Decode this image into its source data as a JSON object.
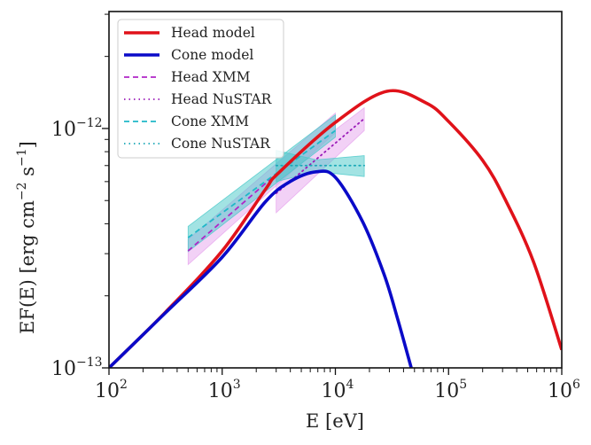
{
  "chart_data": {
    "type": "line",
    "title": "",
    "xlabel": "E [eV]",
    "ylabel": "EF(E) [erg cm^-2 s^-1]",
    "xscale": "log",
    "yscale": "log",
    "xlim": [
      100,
      1000000
    ],
    "ylim": [
      1e-13,
      3.08e-12
    ],
    "grid": false,
    "legend_position": "top-left",
    "x_ticks": [
      {
        "value": 100,
        "base": "10",
        "exp": "2"
      },
      {
        "value": 1000,
        "base": "10",
        "exp": "3"
      },
      {
        "value": 10000,
        "base": "10",
        "exp": "4"
      },
      {
        "value": 100000,
        "base": "10",
        "exp": "5"
      },
      {
        "value": 1000000,
        "base": "10",
        "exp": "6"
      }
    ],
    "y_ticks": [
      {
        "value": 1e-13,
        "base": "10",
        "exp": "−13"
      },
      {
        "value": 1e-12,
        "base": "10",
        "exp": "−12"
      }
    ],
    "ylabel_parts": {
      "main": "EF(E) [erg cm",
      "exp1": "−2",
      "mid": " s",
      "exp2": "−1",
      "end": "]"
    },
    "series": [
      {
        "name": "Head model",
        "color": "#e0121a",
        "style": "solid",
        "kind": "line",
        "x": [
          100,
          316,
          1000,
          2400,
          3160,
          10000,
          28500,
          63000,
          100000,
          200000,
          316000,
          562000,
          1000000
        ],
        "y": [
          1e-13,
          1.71e-13,
          3.08e-13,
          5.55e-13,
          6.53e-13,
          1.06e-12,
          1.43e-12,
          1.28e-12,
          1.07e-12,
          7.36e-13,
          5.06e-13,
          2.78e-13,
          1.19e-13
        ]
      },
      {
        "name": "Cone model",
        "color": "#0a0ac8",
        "style": "solid",
        "kind": "line",
        "x": [
          100,
          316,
          1000,
          2400,
          3980,
          6760,
          10000,
          17400,
          27000,
          35500,
          46800
        ],
        "y": [
          1e-13,
          1.7e-13,
          2.9e-13,
          4.93e-13,
          6e-13,
          6.59e-13,
          6.25e-13,
          4.08e-13,
          2.45e-13,
          1.6e-13,
          1e-13
        ]
      },
      {
        "name": "Head XMM",
        "color": "#b026c8",
        "band_color": "#e6a3ee",
        "style": "dashed",
        "kind": "band",
        "x": [
          500,
          10000
        ],
        "y": [
          3.08e-13,
          1.06e-12
        ],
        "y_upper": [
          3.44e-13,
          1.16e-12
        ],
        "y_lower": [
          2.7e-13,
          9.6e-13
        ]
      },
      {
        "name": "Head NuSTAR",
        "color": "#9a1ab8",
        "band_color": "#e6a3ee",
        "style": "dotted",
        "kind": "band",
        "x": [
          3000,
          18000
        ],
        "y": [
          5.36e-13,
          1.1e-12
        ],
        "y_upper": [
          6.4e-13,
          1.22e-12
        ],
        "y_lower": [
          4.45e-13,
          9.8e-13
        ]
      },
      {
        "name": "Cone XMM",
        "color": "#1fb8c8",
        "band_color": "#45c8c8",
        "style": "dashed",
        "kind": "band",
        "x": [
          500,
          10000
        ],
        "y": [
          3.5e-13,
          9.8e-13
        ],
        "y_upper": [
          3.9e-13,
          1.14e-12
        ],
        "y_lower": [
          3.06e-13,
          9.2e-13
        ]
      },
      {
        "name": "Cone NuSTAR",
        "color": "#1aa8b8",
        "band_color": "#45c8c8",
        "style": "dotted",
        "kind": "band",
        "x": [
          3000,
          6800,
          18000
        ],
        "y": [
          7e-13,
          7e-13,
          7e-13
        ],
        "y_upper": [
          8.1e-13,
          7.4e-13,
          7.7e-13
        ],
        "y_lower": [
          6e-13,
          6.6e-13,
          6.3e-13
        ]
      }
    ]
  }
}
